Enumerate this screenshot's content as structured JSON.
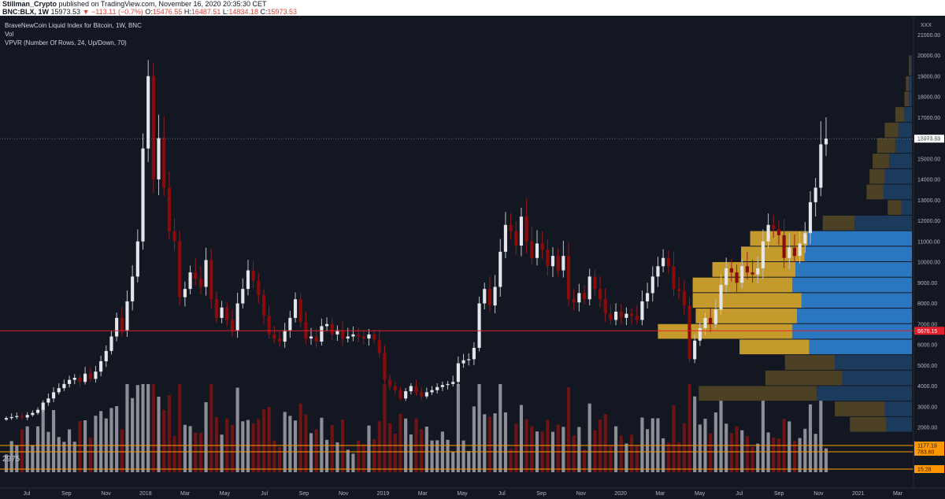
{
  "header": {
    "author": "Stillman_Crypto",
    "published": "published on TradingView.com, November 16, 2020 20:35:30 CET",
    "symbol": "BNC:BLX, 1W",
    "last": "15973.53",
    "change": "−113.11 (−0.7%)",
    "open_label": "O:",
    "open": "15476.55",
    "high_label": "H:",
    "high": "16487.51",
    "low_label": "L:",
    "low": "14834.18",
    "close_label": "C:",
    "close": "15973.53"
  },
  "legend": {
    "line1": "BraveNewCoin Liquid Index for Bitcoin, 1W, BNC",
    "line2": "Vol",
    "line3": "VPVR (Number Of Rows, 24, Up/Down, 70)"
  },
  "price_axis": {
    "currency": "XXX",
    "current_price_tag": "15973.53",
    "red_line_tag": "6676.15",
    "volume_tags": [
      "1177.19",
      "783.60",
      "15.28"
    ]
  },
  "volume_label": "2975",
  "colors": {
    "background": "#131722",
    "up": "#e5e6eb",
    "down": "#8b0b0b",
    "vol_up": "#8b8e96",
    "vol_down": "#6e1414",
    "vpvr_up": "#c49a2c",
    "vpvr_down": "#2a76bf",
    "vpvr_up_dim": "#4d4125",
    "vpvr_down_dim": "#1b3a5c",
    "red_line": "#e0202e",
    "volume_lines": "#ff9800"
  },
  "chart_data": {
    "type": "candlestick",
    "interval": "1W",
    "ylim": [
      0,
      21000
    ],
    "y_ticks": [
      2000,
      3000,
      4000,
      5000,
      6000,
      7000,
      8000,
      9000,
      10000,
      11000,
      12000,
      13000,
      14000,
      15000,
      16000,
      17000,
      18000,
      19000,
      20000,
      21000
    ],
    "x_ticks": [
      "Jul",
      "Sep",
      "Nov",
      "2018",
      "Mar",
      "May",
      "Jul",
      "Sep",
      "Nov",
      "2019",
      "Mar",
      "May",
      "Jul",
      "Sep",
      "Nov",
      "2020",
      "Mar",
      "May",
      "Jul",
      "Sep",
      "Nov",
      "2021",
      "Mar"
    ],
    "horizontal_line": 6676.15,
    "current_price": 15973.53,
    "closes": [
      2450,
      2500,
      2550,
      2480,
      2600,
      2700,
      2850,
      3200,
      3400,
      3700,
      3900,
      4100,
      4300,
      4400,
      4200,
      4600,
      4350,
      4700,
      5200,
      5700,
      6400,
      7300,
      6700,
      8100,
      9300,
      11000,
      15500,
      19000,
      14000,
      16000,
      13600,
      11500,
      11000,
      8300,
      8700,
      9500,
      9200,
      8800,
      10100,
      8200,
      7300,
      7800,
      7200,
      6700,
      8000,
      8700,
      9600,
      9100,
      8400,
      7400,
      6500,
      6300,
      6150,
      6700,
      7300,
      8200,
      7100,
      6300,
      6400,
      6150,
      6900,
      7000,
      6500,
      6700,
      6300,
      6400,
      6500,
      6400,
      6300,
      6500,
      6250,
      5600,
      4300,
      4000,
      3800,
      3400,
      3750,
      4000,
      3700,
      3500,
      3700,
      3800,
      3950,
      4050,
      4100,
      4200,
      5100,
      5250,
      5300,
      5850,
      8000,
      8700,
      7900,
      8800,
      10500,
      11800,
      11500,
      10800,
      12200,
      11000,
      10200,
      10900,
      10600,
      9800,
      10300,
      9600,
      10300,
      8200,
      8050,
      8500,
      8200,
      9300,
      8700,
      8200,
      7500,
      7200,
      7600,
      7300,
      7500,
      7400,
      7200,
      8100,
      8500,
      9300,
      9800,
      10200,
      9800,
      8700,
      8600,
      7900,
      5300,
      6200,
      6800,
      7300,
      7000,
      7700,
      8900,
      9700,
      9500,
      9000,
      9800,
      9500,
      9400,
      9700,
      11000,
      11800,
      11600,
      11300,
      10200,
      10700,
      10300,
      10900,
      11400,
      12900,
      13600,
      15700,
      15973.53
    ],
    "vpvr_rows": [
      {
        "low": 1750,
        "high": 2500,
        "up": 2400,
        "down": 1700
      },
      {
        "low": 2500,
        "high": 3250,
        "up": 3300,
        "down": 1800
      },
      {
        "low": 3250,
        "high": 4000,
        "up": 7800,
        "down": 6300
      },
      {
        "low": 4000,
        "high": 4750,
        "up": 5100,
        "down": 4600
      },
      {
        "low": 4750,
        "high": 5500,
        "up": 3300,
        "down": 5100
      },
      {
        "low": 5500,
        "high": 6250,
        "up": 4600,
        "down": 6800
      },
      {
        "low": 6250,
        "high": 7000,
        "up": 8900,
        "down": 7900
      },
      {
        "low": 7000,
        "high": 7750,
        "up": 6700,
        "down": 7600
      },
      {
        "low": 7750,
        "high": 8500,
        "up": 7200,
        "down": 7300
      },
      {
        "low": 8500,
        "high": 9250,
        "up": 6600,
        "down": 7900
      },
      {
        "low": 9250,
        "high": 10000,
        "up": 5500,
        "down": 7700
      },
      {
        "low": 10000,
        "high": 10750,
        "up": 4200,
        "down": 7100
      },
      {
        "low": 10750,
        "high": 11500,
        "up": 3800,
        "down": 6900
      },
      {
        "low": 11500,
        "high": 12250,
        "up": 2100,
        "down": 3800
      },
      {
        "low": 12250,
        "high": 13000,
        "up": 900,
        "down": 700
      },
      {
        "low": 13000,
        "high": 13750,
        "up": 1100,
        "down": 1900
      },
      {
        "low": 13750,
        "high": 14500,
        "up": 1000,
        "down": 1800
      },
      {
        "low": 14500,
        "high": 15250,
        "up": 1100,
        "down": 1500
      },
      {
        "low": 15250,
        "high": 16000,
        "up": 1200,
        "down": 1100
      },
      {
        "low": 16000,
        "high": 16750,
        "up": 900,
        "down": 900
      },
      {
        "low": 16750,
        "high": 17500,
        "up": 600,
        "down": 500
      },
      {
        "low": 17500,
        "high": 18250,
        "up": 300,
        "down": 200
      },
      {
        "low": 18250,
        "high": 19000,
        "up": 200,
        "down": 200
      },
      {
        "low": 19000,
        "high": 20000,
        "up": 100,
        "down": 100
      }
    ]
  }
}
